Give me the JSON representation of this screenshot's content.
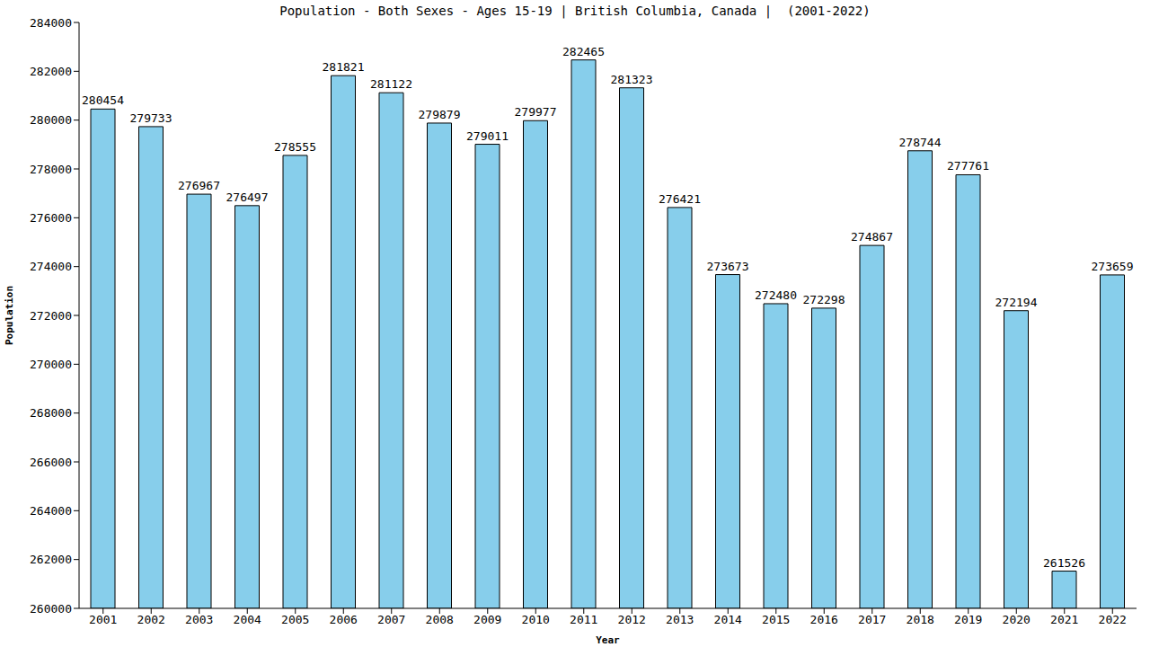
{
  "chart_data": {
    "type": "bar",
    "title": "Population - Both Sexes - Ages 15-19 | British Columbia, Canada |  (2001-2022)",
    "x_label": "Year",
    "y_label": "Population",
    "categories": [
      "2001",
      "2002",
      "2003",
      "2004",
      "2005",
      "2006",
      "2007",
      "2008",
      "2009",
      "2010",
      "2011",
      "2012",
      "2013",
      "2014",
      "2015",
      "2016",
      "2017",
      "2018",
      "2019",
      "2020",
      "2021",
      "2022"
    ],
    "values": [
      280454,
      279733,
      276967,
      276497,
      278555,
      281821,
      281122,
      279879,
      279011,
      279977,
      282465,
      281323,
      276421,
      273673,
      272480,
      272298,
      274867,
      278744,
      277761,
      272194,
      261526,
      273659
    ],
    "color": "#87ceeb",
    "ylim": [
      260000,
      284000
    ],
    "yticks": [
      260000,
      262000,
      264000,
      266000,
      268000,
      270000,
      272000,
      274000,
      276000,
      278000,
      280000,
      282000,
      284000
    ],
    "grid": false,
    "data_labels": true
  }
}
